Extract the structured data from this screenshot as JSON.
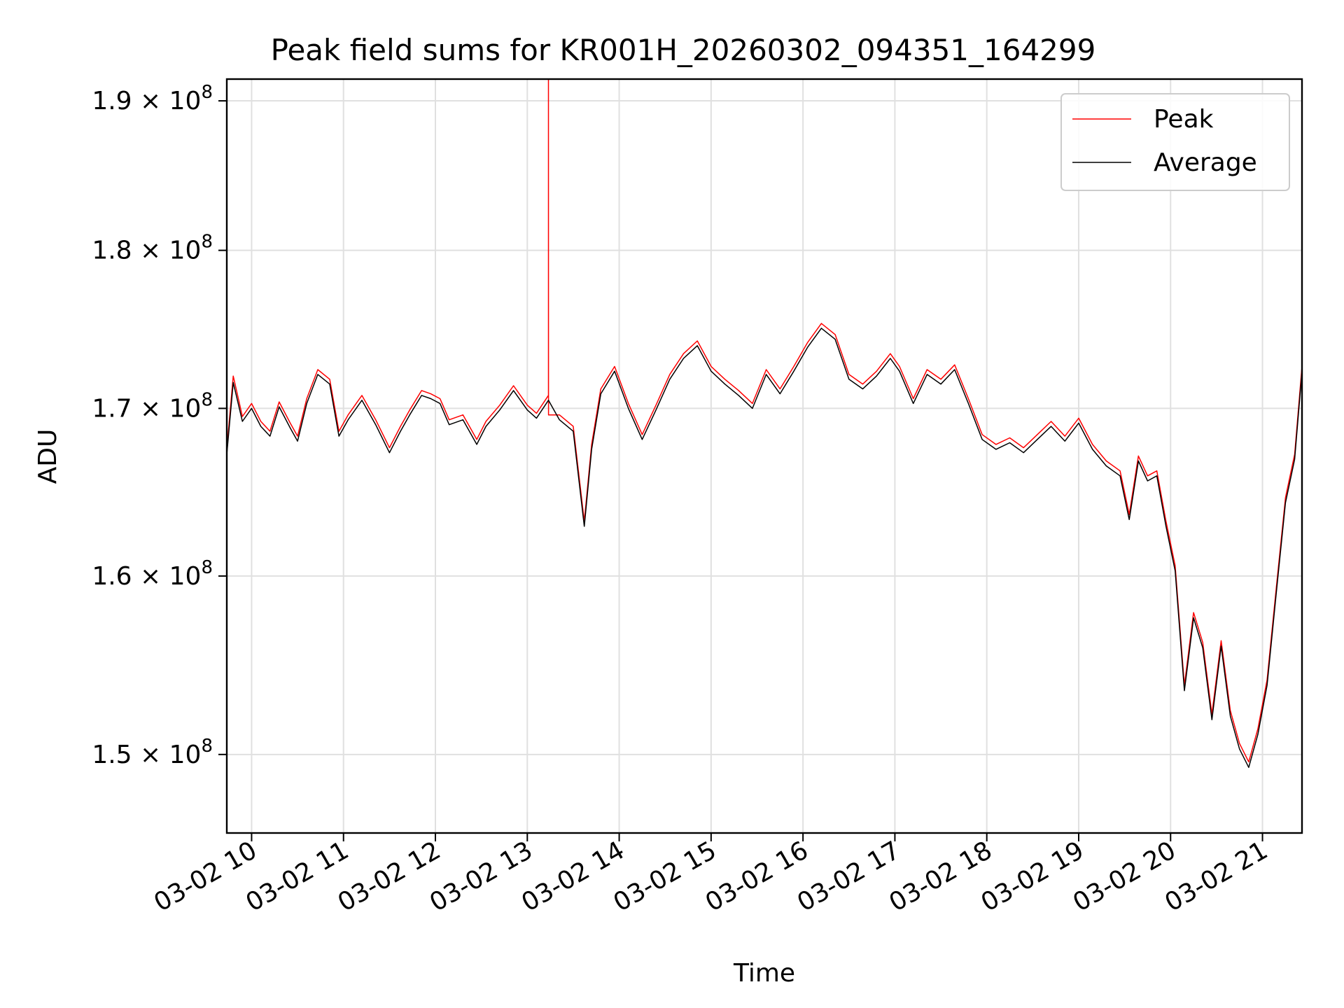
{
  "chart_data": {
    "type": "line",
    "title": "Peak field sums for KR001H_20260302_094351_164299",
    "xlabel": "Time",
    "ylabel": "ADU",
    "xlim_hours": [
      9.73,
      21.43
    ],
    "ylim": [
      145800000,
      191500000
    ],
    "x_ticks": [
      {
        "hour": 10,
        "label": "03-02 10"
      },
      {
        "hour": 11,
        "label": "03-02 11"
      },
      {
        "hour": 12,
        "label": "03-02 12"
      },
      {
        "hour": 13,
        "label": "03-02 13"
      },
      {
        "hour": 14,
        "label": "03-02 14"
      },
      {
        "hour": 15,
        "label": "03-02 15"
      },
      {
        "hour": 16,
        "label": "03-02 16"
      },
      {
        "hour": 17,
        "label": "03-02 17"
      },
      {
        "hour": 18,
        "label": "03-02 18"
      },
      {
        "hour": 19,
        "label": "03-02 19"
      },
      {
        "hour": 20,
        "label": "03-02 20"
      },
      {
        "hour": 21,
        "label": "03-02 21"
      }
    ],
    "y_ticks": [
      {
        "value": 150000000,
        "mantissa": "1.5",
        "exp": "8"
      },
      {
        "value": 160000000,
        "mantissa": "1.6",
        "exp": "8"
      },
      {
        "value": 170000000,
        "mantissa": "1.7",
        "exp": "8"
      },
      {
        "value": 180000000,
        "mantissa": "1.8",
        "exp": "8"
      },
      {
        "value": 190000000,
        "mantissa": "1.9",
        "exp": "8"
      }
    ],
    "y_tick_times": "×10",
    "grid": true,
    "legend_position": "top-right",
    "series": [
      {
        "name": "Peak",
        "color": "#ff0000",
        "spike": {
          "hour": 13.23,
          "value": 191500000
        },
        "x": [
          9.73,
          9.8,
          9.9,
          10.0,
          10.1,
          10.2,
          10.3,
          10.42,
          10.5,
          10.6,
          10.72,
          10.85,
          10.95,
          11.05,
          11.2,
          11.35,
          11.5,
          11.62,
          11.72,
          11.85,
          11.95,
          12.05,
          12.15,
          12.3,
          12.45,
          12.55,
          12.7,
          12.85,
          13.0,
          13.1,
          13.23,
          13.35,
          13.5,
          13.62,
          13.7,
          13.8,
          13.95,
          14.1,
          14.25,
          14.4,
          14.55,
          14.7,
          14.85,
          15.0,
          15.15,
          15.3,
          15.45,
          15.6,
          15.75,
          15.9,
          16.05,
          16.2,
          16.35,
          16.5,
          16.65,
          16.8,
          16.95,
          17.05,
          17.2,
          17.35,
          17.5,
          17.65,
          17.8,
          17.95,
          18.1,
          18.25,
          18.4,
          18.55,
          18.7,
          18.85,
          19.0,
          19.15,
          19.3,
          19.45,
          19.55,
          19.65,
          19.75,
          19.85,
          19.95,
          20.05,
          20.15,
          20.25,
          20.35,
          20.45,
          20.55,
          20.65,
          20.75,
          20.85,
          20.95,
          21.05,
          21.15,
          21.25,
          21.35,
          21.43
        ],
        "values": [
          167500000,
          172000000,
          169500000,
          170300000,
          169200000,
          168600000,
          170400000,
          169100000,
          168300000,
          170600000,
          172400000,
          171800000,
          168600000,
          169600000,
          170800000,
          169300000,
          167600000,
          168900000,
          169900000,
          171100000,
          170900000,
          170600000,
          169300000,
          169600000,
          168100000,
          169200000,
          170200000,
          171400000,
          170200000,
          169700000,
          170800000,
          169600000,
          168900000,
          163200000,
          167800000,
          171200000,
          172600000,
          170300000,
          168400000,
          170200000,
          172100000,
          173400000,
          174200000,
          172600000,
          171800000,
          171100000,
          170300000,
          172400000,
          171200000,
          172600000,
          174100000,
          175300000,
          174600000,
          172100000,
          171500000,
          172300000,
          173400000,
          172600000,
          170600000,
          172400000,
          171800000,
          172700000,
          170600000,
          168400000,
          167800000,
          168200000,
          167600000,
          168400000,
          169200000,
          168300000,
          169400000,
          167800000,
          166800000,
          166200000,
          163600000,
          167100000,
          165900000,
          166200000,
          163200000,
          160600000,
          153800000,
          157900000,
          156200000,
          152200000,
          156300000,
          152400000,
          150600000,
          149600000,
          151400000,
          154100000,
          159300000,
          164600000,
          167200000,
          172600000
        ]
      },
      {
        "name": "Average",
        "color": "#000000",
        "x": [
          9.73,
          9.8,
          9.9,
          10.0,
          10.1,
          10.2,
          10.3,
          10.42,
          10.5,
          10.6,
          10.72,
          10.85,
          10.95,
          11.05,
          11.2,
          11.35,
          11.5,
          11.62,
          11.72,
          11.85,
          11.95,
          12.05,
          12.15,
          12.3,
          12.45,
          12.55,
          12.7,
          12.85,
          13.0,
          13.1,
          13.23,
          13.35,
          13.5,
          13.62,
          13.7,
          13.8,
          13.95,
          14.1,
          14.25,
          14.4,
          14.55,
          14.7,
          14.85,
          15.0,
          15.15,
          15.3,
          15.45,
          15.6,
          15.75,
          15.9,
          16.05,
          16.2,
          16.35,
          16.5,
          16.65,
          16.8,
          16.95,
          17.05,
          17.2,
          17.35,
          17.5,
          17.65,
          17.8,
          17.95,
          18.1,
          18.25,
          18.4,
          18.55,
          18.7,
          18.85,
          19.0,
          19.15,
          19.3,
          19.45,
          19.55,
          19.65,
          19.75,
          19.85,
          19.95,
          20.05,
          20.15,
          20.25,
          20.35,
          20.45,
          20.55,
          20.65,
          20.75,
          20.85,
          20.95,
          21.05,
          21.15,
          21.25,
          21.35,
          21.43
        ],
        "values": [
          167200000,
          171600000,
          169200000,
          170000000,
          168900000,
          168300000,
          170100000,
          168800000,
          168000000,
          170300000,
          172100000,
          171500000,
          168300000,
          169300000,
          170500000,
          169000000,
          167300000,
          168600000,
          169600000,
          170800000,
          170600000,
          170300000,
          169000000,
          169300000,
          167800000,
          168900000,
          169900000,
          171100000,
          169900000,
          169400000,
          170500000,
          169300000,
          168600000,
          162900000,
          167500000,
          170900000,
          172300000,
          170000000,
          168100000,
          169900000,
          171800000,
          173100000,
          173900000,
          172300000,
          171500000,
          170800000,
          170000000,
          172100000,
          170900000,
          172300000,
          173800000,
          175000000,
          174300000,
          171800000,
          171200000,
          172000000,
          173100000,
          172300000,
          170300000,
          172100000,
          171500000,
          172400000,
          170300000,
          168100000,
          167500000,
          167900000,
          167300000,
          168100000,
          168900000,
          168000000,
          169100000,
          167500000,
          166500000,
          165900000,
          163300000,
          166800000,
          165600000,
          165900000,
          162900000,
          160300000,
          153500000,
          157600000,
          155900000,
          151900000,
          156000000,
          152100000,
          150300000,
          149300000,
          151100000,
          153800000,
          159000000,
          164300000,
          166900000,
          172300000
        ]
      }
    ]
  }
}
